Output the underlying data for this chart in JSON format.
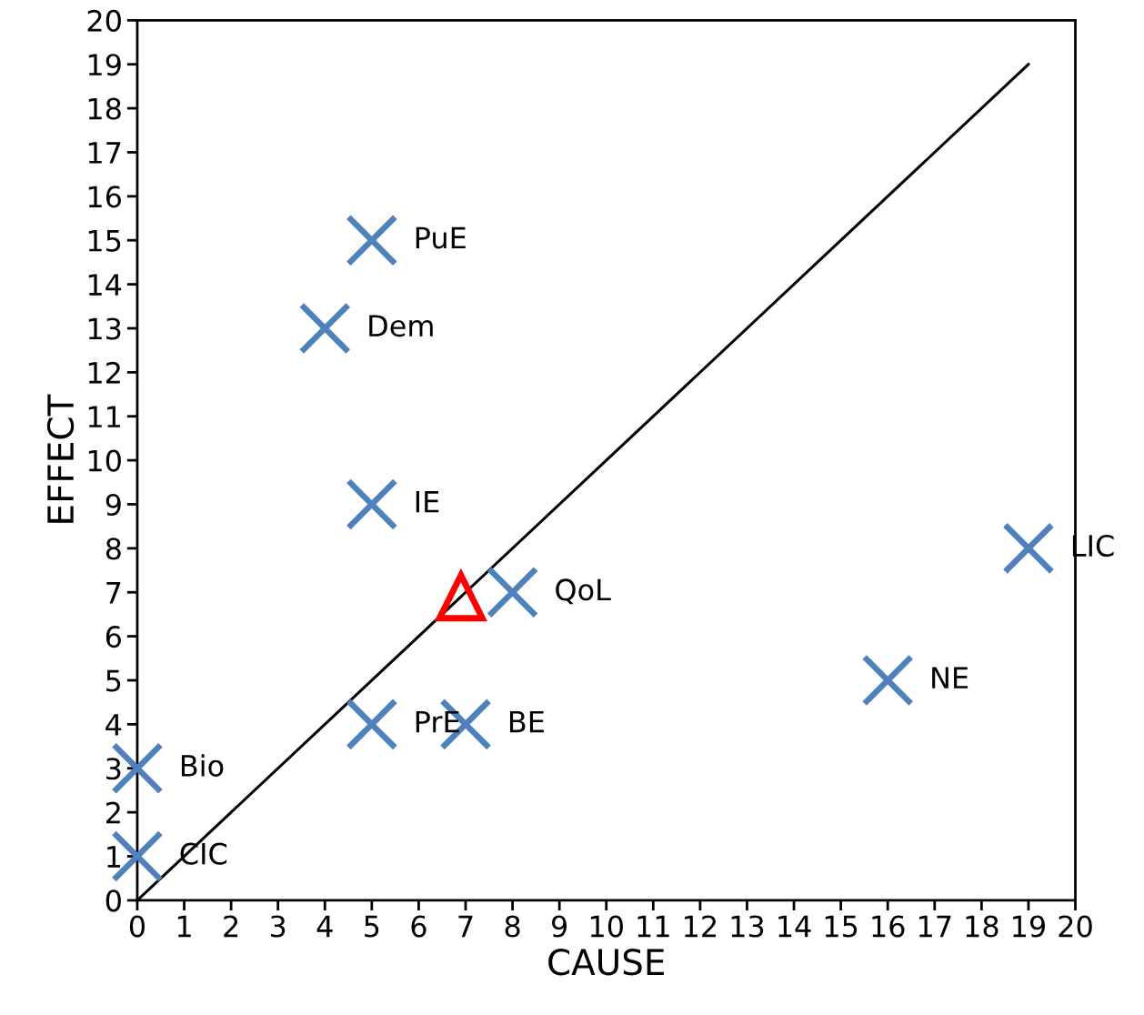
{
  "chart_data": {
    "type": "scatter",
    "xlabel": "CAUSE",
    "ylabel": "EFFECT",
    "xlim": [
      0,
      20
    ],
    "ylim": [
      0,
      20
    ],
    "xticks": [
      0,
      1,
      2,
      3,
      4,
      5,
      6,
      7,
      8,
      9,
      10,
      11,
      12,
      13,
      14,
      15,
      16,
      17,
      18,
      19,
      20
    ],
    "yticks": [
      0,
      1,
      2,
      3,
      4,
      5,
      6,
      7,
      8,
      9,
      10,
      11,
      12,
      13,
      14,
      15,
      16,
      17,
      18,
      19,
      20
    ],
    "grid": false,
    "legend": false,
    "series": [
      {
        "type": "line",
        "color": "#000000",
        "marker": "none",
        "line_style": "solid",
        "x": [
          0,
          19
        ],
        "values": [
          0,
          19
        ]
      },
      {
        "color": "#4f81bd",
        "marker": "cross",
        "x": [
          0,
          0,
          5,
          7,
          16,
          8,
          19,
          5,
          4,
          5
        ],
        "values": [
          1,
          3,
          4,
          4,
          5,
          7,
          8,
          9,
          13,
          15
        ]
      },
      {
        "type": "scatter",
        "color": "#ff0000",
        "marker": "triangle",
        "x": [
          6.9
        ],
        "values": [
          6.9
        ]
      }
    ],
    "annotations": [
      {
        "text": "CIC",
        "x": 0,
        "y": 1
      },
      {
        "text": "Bio",
        "x": 0,
        "y": 3
      },
      {
        "text": "PrE",
        "x": 5,
        "y": 4
      },
      {
        "text": "BE",
        "x": 7,
        "y": 4
      },
      {
        "text": "NE",
        "x": 16,
        "y": 5
      },
      {
        "text": "QoL",
        "x": 8,
        "y": 7
      },
      {
        "text": "LIC",
        "x": 19,
        "y": 8
      },
      {
        "text": "IE",
        "x": 5,
        "y": 9
      },
      {
        "text": "Dem",
        "x": 4,
        "y": 13
      },
      {
        "text": "PuE",
        "x": 5,
        "y": 15
      }
    ]
  }
}
